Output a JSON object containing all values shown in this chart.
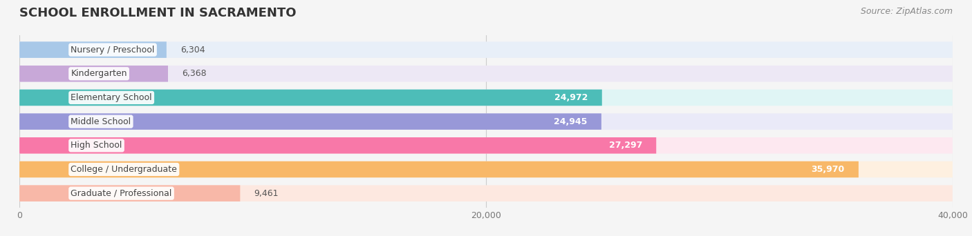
{
  "title": "SCHOOL ENROLLMENT IN SACRAMENTO",
  "source": "Source: ZipAtlas.com",
  "categories": [
    "Nursery / Preschool",
    "Kindergarten",
    "Elementary School",
    "Middle School",
    "High School",
    "College / Undergraduate",
    "Graduate / Professional"
  ],
  "values": [
    6304,
    6368,
    24972,
    24945,
    27297,
    35970,
    9461
  ],
  "bar_colors": [
    "#a8c8e8",
    "#c8a8d8",
    "#4dbdb8",
    "#9898d8",
    "#f878a8",
    "#f8b868",
    "#f8b8a8"
  ],
  "bar_bg_colors": [
    "#e8eff8",
    "#ede8f5",
    "#e0f5f5",
    "#eaeaf8",
    "#fde8f0",
    "#fef0e0",
    "#fde8e0"
  ],
  "xlim": [
    0,
    40000
  ],
  "xticks": [
    0,
    20000,
    40000
  ],
  "xtick_labels": [
    "0",
    "20,000",
    "40,000"
  ],
  "background_color": "#f5f5f5",
  "title_fontsize": 13,
  "label_fontsize": 9,
  "value_fontsize": 9,
  "source_fontsize": 9
}
